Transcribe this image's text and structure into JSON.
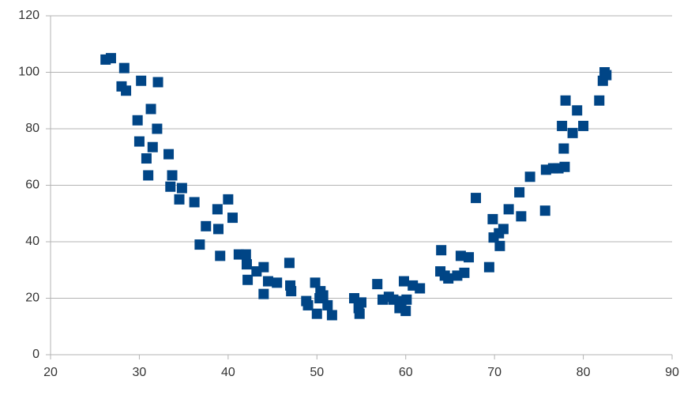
{
  "chart_data": {
    "type": "scatter",
    "x": [
      26.2,
      26.8,
      28,
      28.3,
      28.5,
      29.8,
      30,
      30.2,
      30.8,
      31,
      31.3,
      31.5,
      32,
      32.1,
      33.3,
      33.5,
      33.7,
      34.5,
      34.8,
      36.2,
      36.8,
      37.5,
      38.8,
      38.9,
      39.1,
      40,
      40.5,
      41.2,
      42,
      42.1,
      42.2,
      43.2,
      44,
      44,
      44.5,
      45.5,
      46.9,
      47,
      47.1,
      48.8,
      49,
      49.8,
      50,
      50.3,
      50.4,
      50.7,
      51.2,
      51.7,
      54.2,
      54.7,
      54.8,
      55,
      56.8,
      57.4,
      58.1,
      58.6,
      59.3,
      59.5,
      59.8,
      60,
      60.1,
      60.8,
      61.6,
      63.9,
      64,
      64.4,
      64.8,
      65.8,
      66.2,
      66.6,
      67.1,
      67.9,
      69.4,
      69.8,
      69.9,
      70.5,
      70.6,
      71,
      71.6,
      72.8,
      73,
      74,
      75.7,
      75.8,
      76.6,
      77.2,
      77.6,
      77.8,
      77.9,
      78,
      78.8,
      79.3,
      80,
      81.8,
      82.2,
      82.4,
      82.6
    ],
    "values": [
      104.5,
      105,
      95,
      101.5,
      93.5,
      83,
      75.5,
      97,
      69.5,
      63.5,
      87,
      73.5,
      80,
      96.5,
      71,
      59.5,
      63.5,
      55,
      59,
      54,
      39,
      45.5,
      51.5,
      44.5,
      35,
      55,
      48.5,
      35.5,
      35.5,
      32,
      26.5,
      29.5,
      31,
      21.5,
      26,
      25.5,
      32.5,
      24.5,
      22.5,
      19,
      17.5,
      25.5,
      14.5,
      20,
      22.5,
      21,
      17.5,
      14,
      20,
      16.5,
      14.5,
      18.5,
      25,
      19.5,
      20.5,
      19.5,
      16.5,
      19,
      26,
      15.5,
      19.5,
      24.5,
      23.5,
      29.5,
      37,
      28,
      27,
      28,
      35,
      29,
      34.5,
      55.5,
      31,
      48,
      41.5,
      43,
      38.5,
      44.5,
      51.5,
      57.5,
      49,
      63,
      51,
      65.5,
      66,
      66,
      81,
      73,
      66.5,
      90,
      78.5,
      86.5,
      81,
      90,
      97,
      100,
      99
    ],
    "color": "#004586",
    "xlim": [
      20,
      90
    ],
    "xticks": [
      20,
      30,
      40,
      50,
      60,
      70,
      80,
      90
    ],
    "ylim": [
      0,
      120
    ],
    "yticks": [
      0,
      20,
      40,
      60,
      80,
      100,
      120
    ],
    "grid": true
  }
}
